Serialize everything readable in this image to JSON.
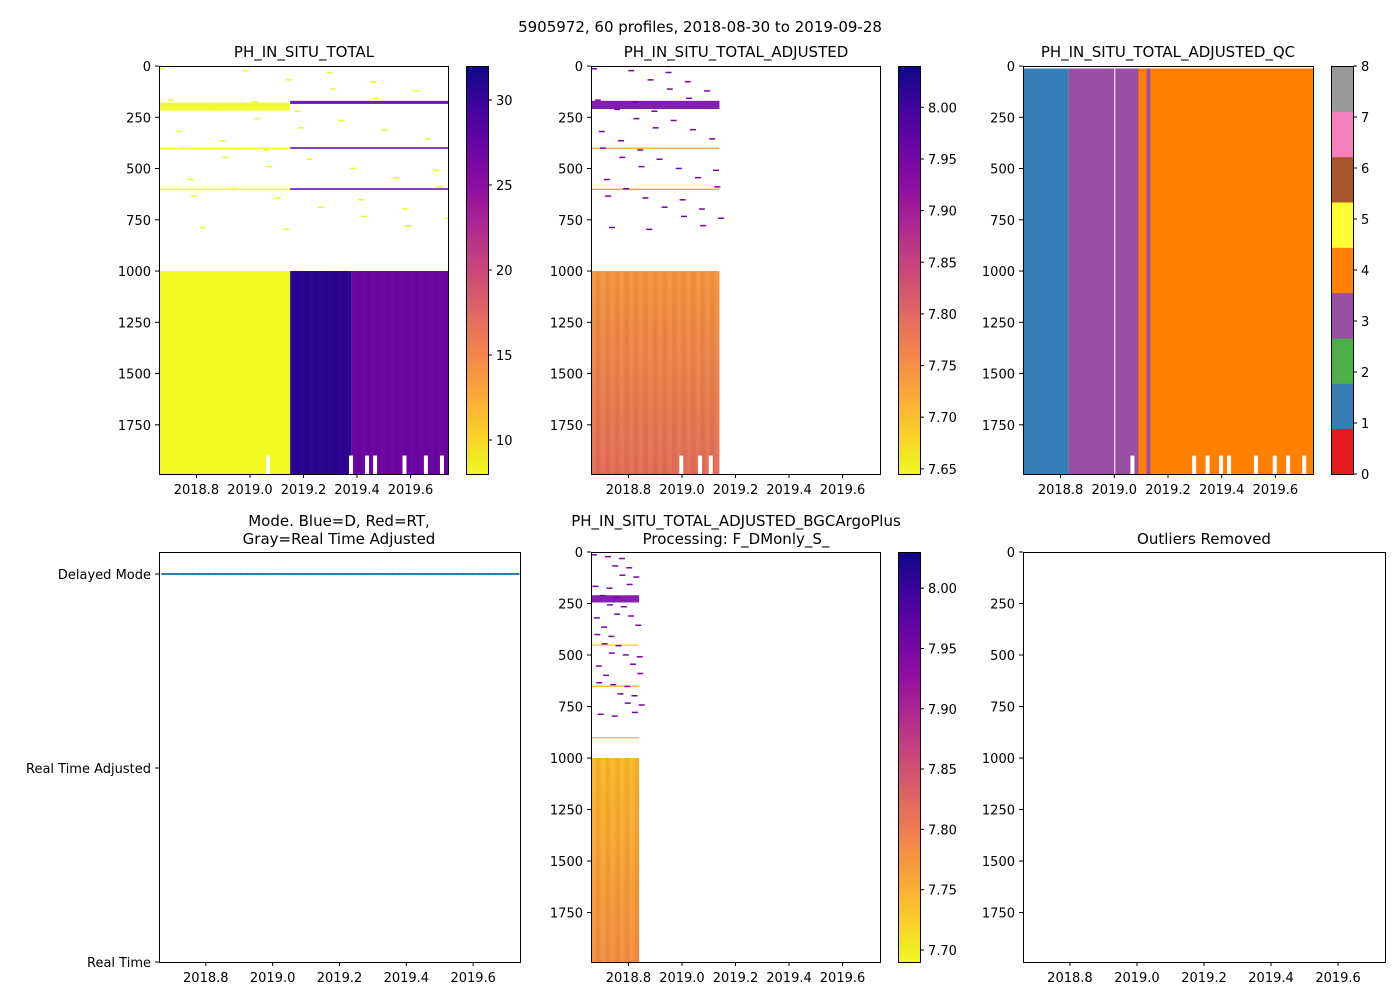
{
  "suptitle": "5905972, 60 profiles, 2018-08-30 to 2019-09-28",
  "chart_data": [
    {
      "id": "ph-raw",
      "type": "heatmap",
      "title": "PH_IN_SITU_TOTAL",
      "colormap": "plasma_r",
      "clim": [
        8,
        32
      ],
      "colorbar_ticks": [
        "10",
        "15",
        "20",
        "25",
        "30"
      ],
      "xlim": [
        2018.66,
        2019.74
      ],
      "ylim": [
        1990,
        0
      ],
      "x_ticks": [
        "2018.8",
        "2019.0",
        "2019.2",
        "2019.4",
        "2019.6"
      ],
      "y_ticks": [
        "0",
        "250",
        "500",
        "750",
        "1000",
        "1250",
        "1500",
        "1750"
      ],
      "deep_blocks": [
        {
          "x0": 2018.66,
          "x1": 2019.15,
          "value": 8.0
        },
        {
          "x0": 2019.15,
          "x1": 2019.38,
          "value": 30.5
        },
        {
          "x0": 2019.38,
          "x1": 2019.74,
          "value": 27.0
        }
      ],
      "shallow_bands": [
        {
          "x0": 2018.66,
          "x1": 2019.15,
          "y0": 178,
          "y1": 218,
          "value": 8.0
        },
        {
          "x0": 2018.66,
          "x1": 2019.15,
          "y0": 398,
          "y1": 406,
          "value": 8.0
        },
        {
          "x0": 2018.66,
          "x1": 2019.15,
          "y0": 598,
          "y1": 606,
          "value": 8.0
        },
        {
          "x0": 2019.15,
          "x1": 2019.74,
          "y0": 170,
          "y1": 185,
          "value": 28.0
        },
        {
          "x0": 2019.15,
          "x1": 2019.74,
          "y0": 396,
          "y1": 404,
          "value": 28.0
        },
        {
          "x0": 2019.15,
          "x1": 2019.74,
          "y0": 596,
          "y1": 604,
          "value": 28.0
        }
      ],
      "gaps": [
        2019.06,
        2019.37,
        2019.43,
        2019.46,
        2019.57,
        2019.65,
        2019.71
      ]
    },
    {
      "id": "ph-adj",
      "type": "heatmap",
      "title": "PH_IN_SITU_TOTAL_ADJUSTED",
      "colormap": "plasma_r",
      "clim": [
        7.645,
        8.04
      ],
      "colorbar_ticks": [
        "7.65",
        "7.70",
        "7.75",
        "7.80",
        "7.85",
        "7.90",
        "7.95",
        "8.00"
      ],
      "xlim": [
        2018.66,
        2019.74
      ],
      "ylim": [
        1990,
        0
      ],
      "x_ticks": [
        "2018.8",
        "2019.0",
        "2019.2",
        "2019.4",
        "2019.6"
      ],
      "y_ticks": [
        "0",
        "250",
        "500",
        "750",
        "1000",
        "1250",
        "1500",
        "1750"
      ],
      "deep_blocks": [
        {
          "x0": 2018.66,
          "x1": 2019.14,
          "value_top": 7.74,
          "value_bottom": 7.79
        }
      ],
      "shallow_bands": [
        {
          "x0": 2018.66,
          "x1": 2019.14,
          "y0": 170,
          "y1": 210,
          "value": 7.95
        },
        {
          "x0": 2018.66,
          "x1": 2019.14,
          "y0": 398,
          "y1": 405,
          "value": 7.73
        },
        {
          "x0": 2018.66,
          "x1": 2019.14,
          "y0": 598,
          "y1": 605,
          "value": 7.75
        }
      ],
      "gaps": [
        2018.99,
        2019.06,
        2019.1
      ]
    },
    {
      "id": "ph-qc",
      "type": "heatmap",
      "title": "PH_IN_SITU_TOTAL_ADJUSTED_QC",
      "xlim": [
        2018.66,
        2019.74
      ],
      "ylim": [
        1990,
        0
      ],
      "x_ticks": [
        "2018.8",
        "2019.0",
        "2019.2",
        "2019.4",
        "2019.6"
      ],
      "y_ticks": [
        "0",
        "250",
        "500",
        "750",
        "1000",
        "1250",
        "1500",
        "1750"
      ],
      "colorbar_ticks": [
        "0",
        "1",
        "2",
        "3",
        "4",
        "5",
        "6",
        "7",
        "8"
      ],
      "qc_colors": [
        "#e41a1c",
        "#377eb8",
        "#4daf4a",
        "#984ea3",
        "#ff7f00",
        "#ffff33",
        "#a65628",
        "#f781bf",
        "#999999"
      ],
      "columns": [
        {
          "x0": 2018.66,
          "x1": 2018.83,
          "qc": 1
        },
        {
          "x0": 2018.83,
          "x1": 2019.09,
          "qc": 3
        },
        {
          "x0": 2019.09,
          "x1": 2019.12,
          "qc": 4
        },
        {
          "x0": 2019.12,
          "x1": 2019.135,
          "qc": 3
        },
        {
          "x0": 2019.135,
          "x1": 2019.74,
          "qc": 4
        }
      ],
      "gaps": [
        2019.06,
        2019.29,
        2019.34,
        2019.39,
        2019.42,
        2019.52,
        2019.59,
        2019.64,
        2019.7
      ]
    },
    {
      "id": "mode",
      "type": "scatter",
      "title": "Mode. Blue=D, Red=RT,\nGray=Real Time Adjusted",
      "xlim": [
        2018.66,
        2019.74
      ],
      "x_ticks": [
        "2018.8",
        "2019.0",
        "2019.2",
        "2019.4",
        "2019.6"
      ],
      "categories": [
        "Delayed Mode",
        "Real Time Adjusted",
        "Real Time"
      ],
      "series": [
        {
          "name": "Delayed Mode",
          "x_start": 2018.67,
          "x_end": 2019.74,
          "category": "Delayed Mode",
          "color": "#1f77b4"
        }
      ]
    },
    {
      "id": "ph-bgc",
      "type": "heatmap",
      "title": "PH_IN_SITU_TOTAL_ADJUSTED_BGCArgoPlus\nProcessing: F_DMonly_S_",
      "colormap": "plasma_r",
      "clim": [
        7.69,
        8.03
      ],
      "colorbar_ticks": [
        "7.70",
        "7.75",
        "7.80",
        "7.85",
        "7.90",
        "7.95",
        "8.00"
      ],
      "xlim": [
        2018.66,
        2019.74
      ],
      "ylim": [
        1990,
        0
      ],
      "x_ticks": [
        "2018.8",
        "2019.0",
        "2019.2",
        "2019.4",
        "2019.6"
      ],
      "y_ticks": [
        "0",
        "250",
        "500",
        "750",
        "1000",
        "1250",
        "1500",
        "1750"
      ],
      "deep_blocks": [
        {
          "x0": 2018.66,
          "x1": 2018.84,
          "value_top": 7.74,
          "value_bottom": 7.78
        }
      ],
      "shallow_bands": [
        {
          "x0": 2018.66,
          "x1": 2018.84,
          "y0": 210,
          "y1": 245,
          "value": 7.95
        },
        {
          "x0": 2018.66,
          "x1": 2018.84,
          "y0": 448,
          "y1": 452,
          "value": 7.72
        },
        {
          "x0": 2018.66,
          "x1": 2018.84,
          "y0": 648,
          "y1": 652,
          "value": 7.74
        },
        {
          "x0": 2018.66,
          "x1": 2018.84,
          "y0": 898,
          "y1": 902,
          "value": 7.73
        }
      ],
      "gaps": []
    },
    {
      "id": "outliers",
      "type": "heatmap",
      "title": "Outliers Removed",
      "xlim": [
        2018.66,
        2019.74
      ],
      "ylim": [
        1990,
        0
      ],
      "x_ticks": [
        "2018.8",
        "2019.0",
        "2019.2",
        "2019.4",
        "2019.6"
      ],
      "y_ticks": [
        "0",
        "250",
        "500",
        "750",
        "1000",
        "1250",
        "1500",
        "1750"
      ]
    }
  ]
}
